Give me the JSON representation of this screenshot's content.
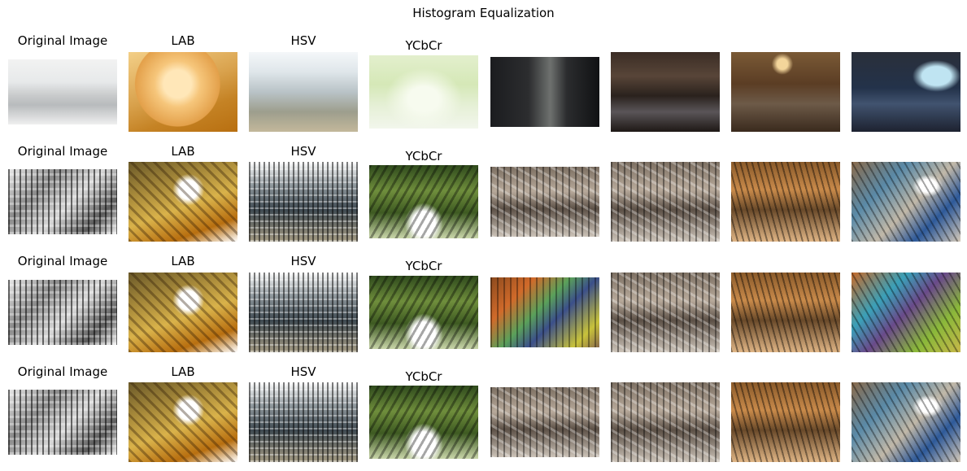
{
  "figure": {
    "title": "Histogram Equalization",
    "rows": [
      [
        "Original Image",
        "LAB",
        "HSV",
        "YCbCr",
        "",
        "",
        "",
        ""
      ],
      [
        "Original Image",
        "LAB",
        "HSV",
        "YCbCr",
        "",
        "",
        "",
        ""
      ],
      [
        "Original Image",
        "LAB",
        "HSV",
        "YCbCr",
        "",
        "",
        "",
        ""
      ],
      [
        "Original Image",
        "LAB",
        "HSV",
        "YCbCr",
        "",
        "",
        "",
        ""
      ]
    ]
  },
  "thumbnails": [
    [
      "hazy-city-photo",
      "kitten-photo",
      "aerial-city-photo",
      "bright-forest-photo",
      "dark-living-room-photo",
      "dim-living-room-photo",
      "warm-living-room-photo",
      "dark-bedroom-photo"
    ],
    [
      "equalized-city",
      "equalized-kitten",
      "equalized-aerial-city",
      "equalized-forest",
      "equalized-living-room",
      "equalized-living-room-2",
      "equalized-warm-room",
      "equalized-bedroom"
    ],
    [
      "equalized-city",
      "equalized-kitten",
      "equalized-aerial-city",
      "equalized-forest",
      "equalized-living-room",
      "equalized-living-room-2",
      "equalized-warm-room",
      "equalized-bedroom"
    ],
    [
      "equalized-city",
      "equalized-kitten",
      "equalized-aerial-city",
      "equalized-forest",
      "equalized-living-room",
      "equalized-living-room-2",
      "equalized-warm-room",
      "equalized-bedroom"
    ]
  ]
}
